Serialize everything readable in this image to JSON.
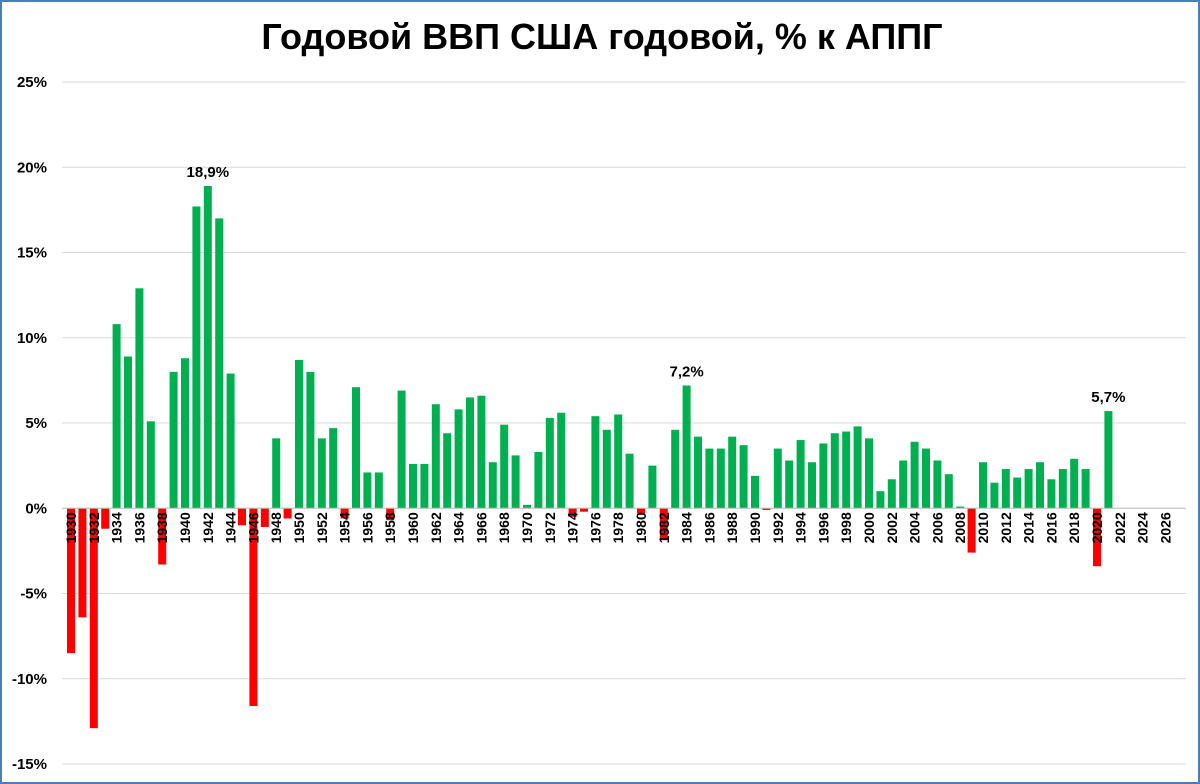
{
  "chart_data": {
    "type": "bar",
    "title": "Годовой ВВП США годовой, % к АППГ",
    "xlabel": "",
    "ylabel": "",
    "ylim": [
      -15,
      25
    ],
    "y_ticks": [
      -15,
      -10,
      -5,
      0,
      5,
      10,
      15,
      20,
      25
    ],
    "y_tick_labels": [
      "-15%",
      "-10%",
      "-5%",
      "0%",
      "5%",
      "10%",
      "15%",
      "20%",
      "25%"
    ],
    "x_range": [
      1930,
      2026
    ],
    "x_tick_labels": [
      "1930",
      "1932",
      "1934",
      "1936",
      "1938",
      "1940",
      "1942",
      "1944",
      "1946",
      "1948",
      "1950",
      "1952",
      "1954",
      "1956",
      "1958",
      "1960",
      "1962",
      "1964",
      "1966",
      "1968",
      "1970",
      "1972",
      "1974",
      "1976",
      "1978",
      "1980",
      "1982",
      "1984",
      "1986",
      "1988",
      "1990",
      "1992",
      "1994",
      "1996",
      "1998",
      "2000",
      "2002",
      "2004",
      "2006",
      "2008",
      "2010",
      "2012",
      "2014",
      "2016",
      "2018",
      "2020",
      "2022",
      "2024",
      "2026"
    ],
    "grid": true,
    "colors": {
      "positive": "#00b050",
      "negative": "#ff0000",
      "grid": "#d9d9d9"
    },
    "years": [
      1930,
      1931,
      1932,
      1933,
      1934,
      1935,
      1936,
      1937,
      1938,
      1939,
      1940,
      1941,
      1942,
      1943,
      1944,
      1945,
      1946,
      1947,
      1948,
      1949,
      1950,
      1951,
      1952,
      1953,
      1954,
      1955,
      1956,
      1957,
      1958,
      1959,
      1960,
      1961,
      1962,
      1963,
      1964,
      1965,
      1966,
      1967,
      1968,
      1969,
      1970,
      1971,
      1972,
      1973,
      1974,
      1975,
      1976,
      1977,
      1978,
      1979,
      1980,
      1981,
      1982,
      1983,
      1984,
      1985,
      1986,
      1987,
      1988,
      1989,
      1990,
      1991,
      1992,
      1993,
      1994,
      1995,
      1996,
      1997,
      1998,
      1999,
      2000,
      2001,
      2002,
      2003,
      2004,
      2005,
      2006,
      2007,
      2008,
      2009,
      2010,
      2011,
      2012,
      2013,
      2014,
      2015,
      2016,
      2017,
      2018,
      2019,
      2020,
      2021
    ],
    "values": [
      -8.5,
      -6.4,
      -12.9,
      -1.2,
      10.8,
      8.9,
      12.9,
      5.1,
      -3.3,
      8.0,
      8.8,
      17.7,
      18.9,
      17.0,
      7.9,
      -1.0,
      -11.6,
      -1.1,
      4.1,
      -0.6,
      8.7,
      8.0,
      4.1,
      4.7,
      -0.6,
      7.1,
      2.1,
      2.1,
      -0.7,
      6.9,
      2.6,
      2.6,
      6.1,
      4.4,
      5.8,
      6.5,
      6.6,
      2.7,
      4.9,
      3.1,
      0.2,
      3.3,
      5.3,
      5.6,
      -0.5,
      -0.2,
      5.4,
      4.6,
      5.5,
      3.2,
      -0.3,
      2.5,
      -1.8,
      4.6,
      7.2,
      4.2,
      3.5,
      3.5,
      4.2,
      3.7,
      1.9,
      -0.1,
      3.5,
      2.8,
      4.0,
      2.7,
      3.8,
      4.4,
      4.5,
      4.8,
      4.1,
      1.0,
      1.7,
      2.8,
      3.9,
      3.5,
      2.8,
      2.0,
      0.1,
      -2.6,
      2.7,
      1.5,
      2.3,
      1.8,
      2.3,
      2.7,
      1.7,
      2.3,
      2.9,
      2.3,
      -3.4,
      5.7
    ],
    "annotations": [
      {
        "year": 1942,
        "value": 18.9,
        "text": "18,9%"
      },
      {
        "year": 1984,
        "value": 7.2,
        "text": "7,2%"
      },
      {
        "year": 2021,
        "value": 5.7,
        "text": "5,7%"
      }
    ]
  }
}
